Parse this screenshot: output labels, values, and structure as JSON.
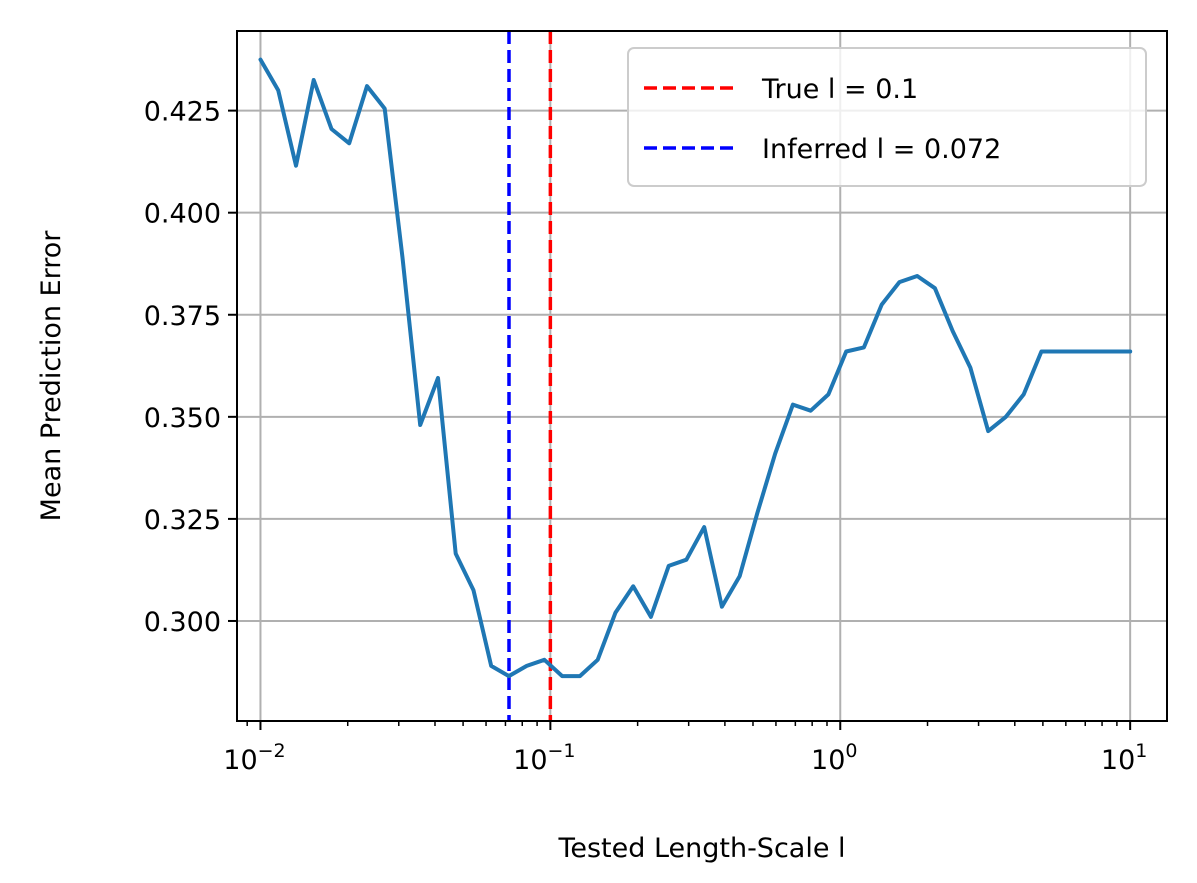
{
  "chart_data": {
    "type": "line",
    "title": "",
    "xlabel": "Tested Length-Scale l",
    "ylabel": "Mean Prediction Error",
    "x_scale": "log",
    "xlim": [
      0.0083,
      13.4
    ],
    "ylim": [
      0.2755,
      0.4445
    ],
    "grid": true,
    "legend_position": "top-right",
    "x_ticks": [
      {
        "value": 0.01,
        "base": "10",
        "exp": "−2"
      },
      {
        "value": 0.1,
        "base": "10",
        "exp": "−1"
      },
      {
        "value": 1,
        "base": "10",
        "exp": "0"
      },
      {
        "value": 10,
        "base": "10",
        "exp": "1"
      }
    ],
    "y_ticks": [
      {
        "value": 0.3,
        "label": "0.300"
      },
      {
        "value": 0.325,
        "label": "0.325"
      },
      {
        "value": 0.35,
        "label": "0.350"
      },
      {
        "value": 0.375,
        "label": "0.375"
      },
      {
        "value": 0.4,
        "label": "0.400"
      },
      {
        "value": 0.425,
        "label": "0.425"
      }
    ],
    "series": [
      {
        "color": "#1f77b4",
        "x": [
          0.01,
          0.01151,
          0.01326,
          0.01526,
          0.01758,
          0.02024,
          0.0233,
          0.02683,
          0.03089,
          0.03556,
          0.04095,
          0.04715,
          0.05429,
          0.06251,
          0.07197,
          0.08286,
          0.09541,
          0.10985,
          0.12649,
          0.14563,
          0.16768,
          0.19307,
          0.2223,
          0.25595,
          0.29471,
          0.33932,
          0.39069,
          0.44984,
          0.51795,
          0.59636,
          0.68665,
          0.7906,
          0.9103,
          1.04811,
          1.20679,
          1.3895,
          1.59986,
          1.84207,
          2.12095,
          2.44205,
          2.81177,
          3.23746,
          3.72759,
          4.29193,
          4.94171,
          5.68987,
          6.55129,
          7.54312,
          8.68511,
          10.0
        ],
        "values": [
          0.4375,
          0.43,
          0.4115,
          0.4325,
          0.4205,
          0.417,
          0.431,
          0.4255,
          0.389,
          0.348,
          0.3595,
          0.3165,
          0.3075,
          0.289,
          0.2865,
          0.289,
          0.2905,
          0.2865,
          0.2865,
          0.2905,
          0.302,
          0.3085,
          0.301,
          0.3135,
          0.315,
          0.323,
          0.3035,
          0.311,
          0.3265,
          0.341,
          0.353,
          0.3515,
          0.3555,
          0.366,
          0.367,
          0.3775,
          0.383,
          0.3845,
          0.3815,
          0.371,
          0.362,
          0.3465,
          0.35,
          0.3555,
          0.366,
          0.366,
          0.366,
          0.366,
          0.366,
          0.366
        ]
      }
    ],
    "vlines": [
      {
        "name": "True l = 0.1",
        "x": 0.1,
        "color": "#ff0000"
      },
      {
        "name": "Inferred l = 0.072",
        "x": 0.072,
        "color": "#0000ff"
      }
    ]
  }
}
